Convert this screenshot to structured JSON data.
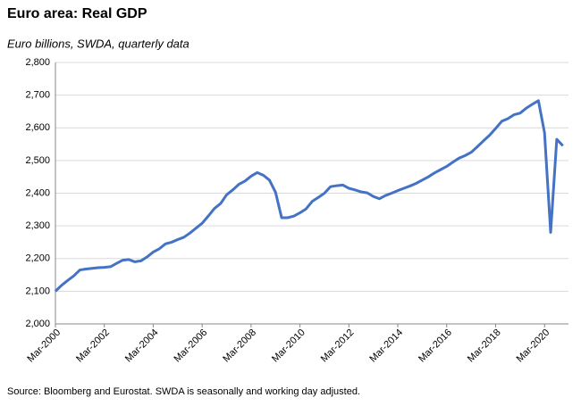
{
  "chart_data": {
    "type": "line",
    "title": "Euro area: Real GDP",
    "subtitle": "Euro billions, SWDA, quarterly data",
    "source": "Source: Bloomberg and Eurostat.  SWDA is seasonally and working day adjusted.",
    "categories": [
      "Mar-2000",
      null,
      null,
      null,
      null,
      null,
      null,
      null,
      "Mar-2002",
      null,
      null,
      null,
      null,
      null,
      null,
      null,
      "Mar-2004",
      null,
      null,
      null,
      null,
      null,
      null,
      null,
      "Mar-2006",
      null,
      null,
      null,
      null,
      null,
      null,
      null,
      "Mar-2008",
      null,
      null,
      null,
      null,
      null,
      null,
      null,
      "Mar-2010",
      null,
      null,
      null,
      null,
      null,
      null,
      null,
      "Mar-2012",
      null,
      null,
      null,
      null,
      null,
      null,
      null,
      "Mar-2014",
      null,
      null,
      null,
      null,
      null,
      null,
      null,
      "Mar-2016",
      null,
      null,
      null,
      null,
      null,
      null,
      null,
      "Mar-2018",
      null,
      null,
      null,
      null,
      null,
      null,
      null,
      "Mar-2020",
      null,
      null,
      null
    ],
    "series": [
      {
        "name": "Real GDP",
        "color": "#4472c4",
        "values": [
          2100,
          2118,
          2133,
          2147,
          2165,
          2168,
          2170,
          2172,
          2173,
          2175,
          2185,
          2195,
          2197,
          2190,
          2193,
          2205,
          2220,
          2230,
          2245,
          2250,
          2258,
          2265,
          2278,
          2293,
          2308,
          2330,
          2353,
          2368,
          2395,
          2410,
          2427,
          2437,
          2452,
          2463,
          2455,
          2440,
          2403,
          2325,
          2325,
          2330,
          2340,
          2352,
          2375,
          2387,
          2400,
          2420,
          2423,
          2425,
          2415,
          2410,
          2404,
          2401,
          2390,
          2383,
          2393,
          2400,
          2408,
          2415,
          2422,
          2430,
          2440,
          2450,
          2462,
          2472,
          2482,
          2495,
          2507,
          2515,
          2525,
          2542,
          2560,
          2577,
          2598,
          2620,
          2628,
          2640,
          2645,
          2660,
          2672,
          2683,
          2585,
          2280,
          2565,
          2545
        ]
      }
    ],
    "ylim": [
      2000,
      2800
    ],
    "yticks": [
      {
        "value": 2000,
        "label": "2,000"
      },
      {
        "value": 2100,
        "label": "2,100"
      },
      {
        "value": 2200,
        "label": "2,200"
      },
      {
        "value": 2300,
        "label": "2,300"
      },
      {
        "value": 2400,
        "label": "2,400"
      },
      {
        "value": 2500,
        "label": "2,500"
      },
      {
        "value": 2600,
        "label": "2,600"
      },
      {
        "value": 2700,
        "label": "2,700"
      },
      {
        "value": 2800,
        "label": "2,800"
      }
    ],
    "grid": true
  }
}
